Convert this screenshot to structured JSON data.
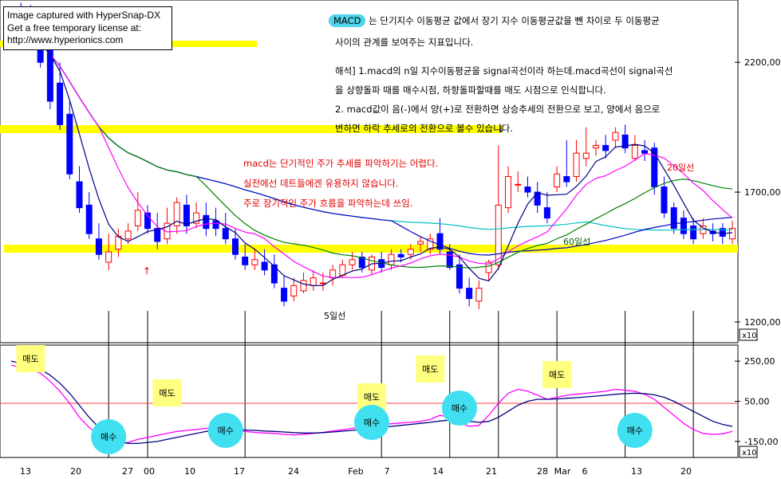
{
  "watermark": {
    "line1": "Image captured with HyperSnap-DX",
    "line2": "Get a free temporary license at:",
    "line3": "http://www.hyperionics.com"
  },
  "description": {
    "macd_label": "MACD",
    "line1_rest": "는 단기지수 이동평균 값에서 장기 지수 이동평균값을 뺀 차이로 두 이동평균",
    "line2": "사이의 관계를 보여주는 지표입니다.",
    "line3": "해석] 1.macd의 n일 지수이동평균을 signal곡선이라 하는데.macd곡선이 signal곡선",
    "line4": "을 상향돌파 때를 매수시점, 하향돌파할때를 매도 시점으로 인식합니다.",
    "line5": "2. macd값이 음(-)에서 양(+)로 전환하면 상승추세의 전환으로 보고, 양에서 음으로",
    "line6": "변하면 하락 추세로의 전환으로 볼수 있습니다."
  },
  "red_notes": {
    "line1": "macd는 단기적인 주가 추세를 파악하기는 어렵다.",
    "line2": "실전에선 데트들에겐 유용하지 않습니다.",
    "line3": "주로 장기적인 주가 흐름을 파악하는데 쓰임."
  },
  "ma_labels": {
    "ma5": "5일선",
    "ma20": "20일선",
    "ma60": "60일선"
  },
  "price_axis": {
    "ticks": [
      "2200,00",
      "1700,00",
      "1200,00"
    ],
    "unit": "x10"
  },
  "macd_axis": {
    "ticks": [
      "250,00",
      "50,00",
      "-150,00"
    ],
    "unit": "x10"
  },
  "x_axis": {
    "labels": [
      "13",
      "20",
      "27",
      "00",
      "10",
      "17",
      "24",
      "Feb",
      "7",
      "14",
      "21",
      "28",
      "Mar",
      "6",
      "13",
      "20"
    ]
  },
  "signals": {
    "sell": [
      "매도",
      "매도",
      "매도",
      "매도",
      "매도"
    ],
    "buy": [
      "매수",
      "매수",
      "매수",
      "매수",
      "매수"
    ]
  },
  "colors": {
    "up_candle": "#ff0000",
    "down_candle": "#0000ff",
    "ma5": "#000080",
    "ma20": "#ff00ff",
    "ma60": "#008000",
    "ma_long_blue": "#0000c0",
    "ma_cyan": "#00c0c0",
    "highlight_band": "#ffff00",
    "buy_circle": "#40e0f0",
    "sell_box": "#ffff80",
    "signal_line": "#ff4040"
  },
  "chart_data": [
    {
      "type": "candlestick",
      "title": "",
      "ylim": [
        1120,
        2440
      ],
      "y_ticks": [
        2200,
        1700,
        1200
      ],
      "y_unit": "x10",
      "x": [
        "13",
        "14",
        "15",
        "16",
        "17",
        "20",
        "21",
        "22",
        "23",
        "24",
        "27",
        "28",
        "29",
        "30",
        "31",
        "03",
        "04",
        "05",
        "06",
        "07",
        "10",
        "11",
        "12",
        "13",
        "14",
        "17",
        "18",
        "19",
        "20",
        "21",
        "24",
        "25",
        "26",
        "27",
        "28",
        "Feb",
        "01",
        "02",
        "03",
        "04",
        "07",
        "08",
        "09",
        "10",
        "11",
        "14",
        "15",
        "16",
        "17",
        "18",
        "21",
        "22",
        "23",
        "24",
        "25",
        "28",
        "Mar",
        "01",
        "02",
        "03",
        "06",
        "07",
        "08",
        "09",
        "10",
        "13",
        "14",
        "15",
        "16",
        "17",
        "20",
        "21",
        "22",
        "23",
        "24"
      ],
      "series_open": [
        2350,
        2380,
        2390,
        2320,
        2270,
        2120,
        2000,
        1740,
        1650,
        1520,
        1430,
        1480,
        1520,
        1570,
        1620,
        1560,
        1520,
        1570,
        1650,
        1580,
        1610,
        1590,
        1560,
        1520,
        1450,
        1420,
        1430,
        1420,
        1330,
        1300,
        1320,
        1340,
        1350,
        1370,
        1380,
        1420,
        1450,
        1400,
        1440,
        1420,
        1460,
        1460,
        1500,
        1480,
        1540,
        1470,
        1420,
        1330,
        1280,
        1390,
        1420,
        1640,
        1730,
        1720,
        1700,
        1640,
        1720,
        1760,
        1760,
        1830,
        1870,
        1880,
        1900,
        1920,
        1830,
        1860,
        1870,
        1720,
        1640,
        1600,
        1570,
        1540,
        1550,
        1560,
        1520
      ],
      "series_close": [
        2280,
        2330,
        2290,
        2200,
        2050,
        1960,
        1770,
        1640,
        1540,
        1460,
        1470,
        1530,
        1550,
        1630,
        1560,
        1510,
        1580,
        1660,
        1570,
        1620,
        1560,
        1560,
        1520,
        1460,
        1420,
        1440,
        1400,
        1350,
        1280,
        1340,
        1360,
        1370,
        1350,
        1400,
        1420,
        1440,
        1410,
        1450,
        1410,
        1460,
        1450,
        1480,
        1510,
        1520,
        1480,
        1410,
        1330,
        1290,
        1330,
        1430,
        1650,
        1760,
        1730,
        1700,
        1650,
        1600,
        1770,
        1740,
        1850,
        1850,
        1880,
        1860,
        1930,
        1870,
        1880,
        1850,
        1720,
        1620,
        1560,
        1540,
        1520,
        1570,
        1540,
        1530,
        1560
      ],
      "series_high": [
        2400,
        2430,
        2420,
        2360,
        2300,
        2200,
        2050,
        1800,
        1700,
        1580,
        1540,
        1560,
        1580,
        1700,
        1650,
        1620,
        1640,
        1680,
        1690,
        1660,
        1660,
        1640,
        1620,
        1560,
        1500,
        1480,
        1480,
        1460,
        1380,
        1370,
        1390,
        1400,
        1390,
        1420,
        1440,
        1470,
        1470,
        1460,
        1470,
        1480,
        1480,
        1500,
        1530,
        1540,
        1600,
        1500,
        1460,
        1370,
        1360,
        1440,
        1880,
        1800,
        1780,
        1760,
        1740,
        1700,
        1800,
        1900,
        1900,
        1950,
        1900,
        1920,
        1950,
        1960,
        1920,
        1900,
        1890,
        1760,
        1660,
        1630,
        1600,
        1600,
        1580,
        1580,
        1590
      ],
      "series_low": [
        2250,
        2300,
        2270,
        2180,
        2020,
        1940,
        1750,
        1620,
        1520,
        1440,
        1400,
        1450,
        1500,
        1550,
        1540,
        1480,
        1500,
        1540,
        1540,
        1560,
        1530,
        1530,
        1500,
        1440,
        1400,
        1400,
        1380,
        1330,
        1260,
        1280,
        1310,
        1320,
        1320,
        1340,
        1370,
        1400,
        1390,
        1380,
        1390,
        1400,
        1430,
        1440,
        1470,
        1460,
        1460,
        1400,
        1310,
        1260,
        1250,
        1360,
        1400,
        1620,
        1700,
        1680,
        1620,
        1580,
        1700,
        1720,
        1740,
        1800,
        1840,
        1830,
        1870,
        1850,
        1820,
        1820,
        1690,
        1600,
        1540,
        1520,
        1500,
        1520,
        1510,
        1500,
        1500
      ],
      "moving_averages": [
        {
          "name": "5일선"
        },
        {
          "name": "20일선"
        },
        {
          "name": "60일선"
        }
      ]
    },
    {
      "type": "line",
      "title": "",
      "ylim": [
        -230,
        330
      ],
      "y_ticks": [
        250,
        50,
        -150
      ],
      "y_unit": "x10",
      "x": [
        "13",
        "14",
        "15",
        "16",
        "17",
        "20",
        "21",
        "22",
        "23",
        "24",
        "27",
        "28",
        "29",
        "30",
        "31",
        "03",
        "04",
        "05",
        "06",
        "07",
        "10",
        "11",
        "12",
        "13",
        "14",
        "17",
        "18",
        "19",
        "20",
        "21",
        "24",
        "25",
        "26",
        "27",
        "28",
        "Feb",
        "01",
        "02",
        "03",
        "04",
        "07",
        "08",
        "09",
        "10",
        "11",
        "14",
        "15",
        "16",
        "17",
        "18",
        "21",
        "22",
        "23",
        "24",
        "25",
        "28",
        "Mar",
        "01",
        "02",
        "03",
        "06",
        "07",
        "08",
        "09",
        "10",
        "13",
        "14",
        "15",
        "16",
        "17",
        "20",
        "21",
        "22",
        "23",
        "24"
      ],
      "series": [
        {
          "values": [
            230,
            220,
            210,
            190,
            150,
            100,
            40,
            -30,
            -80,
            -120,
            -150,
            -160,
            -155,
            -140,
            -130,
            -120,
            -110,
            -100,
            -95,
            -90,
            -85,
            -88,
            -90,
            -95,
            -100,
            -105,
            -108,
            -110,
            -115,
            -118,
            -115,
            -110,
            -105,
            -98,
            -92,
            -85,
            -78,
            -72,
            -68,
            -62,
            -58,
            -55,
            -50,
            -40,
            -20,
            -30,
            -55,
            -75,
            -70,
            -20,
            40,
            90,
            110,
            100,
            80,
            60,
            70,
            80,
            85,
            90,
            95,
            100,
            110,
            105,
            100,
            85,
            60,
            20,
            -20,
            -60,
            -90,
            -110,
            -115,
            -112,
            -100
          ]
        },
        {
          "values": [
            250,
            240,
            230,
            210,
            180,
            140,
            90,
            30,
            -30,
            -80,
            -120,
            -150,
            -160,
            -160,
            -155,
            -150,
            -140,
            -130,
            -120,
            -110,
            -100,
            -95,
            -92,
            -92,
            -93,
            -95,
            -98,
            -100,
            -103,
            -106,
            -108,
            -108,
            -106,
            -103,
            -99,
            -95,
            -90,
            -85,
            -80,
            -75,
            -70,
            -65,
            -60,
            -55,
            -48,
            -44,
            -45,
            -50,
            -55,
            -50,
            -30,
            0,
            30,
            50,
            60,
            60,
            62,
            65,
            68,
            72,
            76,
            80,
            85,
            88,
            90,
            88,
            82,
            70,
            50,
            25,
            0,
            -25,
            -50,
            -65,
            -75
          ]
        }
      ],
      "annotations": {
        "sell_signals": 5,
        "buy_signals": 5
      }
    }
  ]
}
